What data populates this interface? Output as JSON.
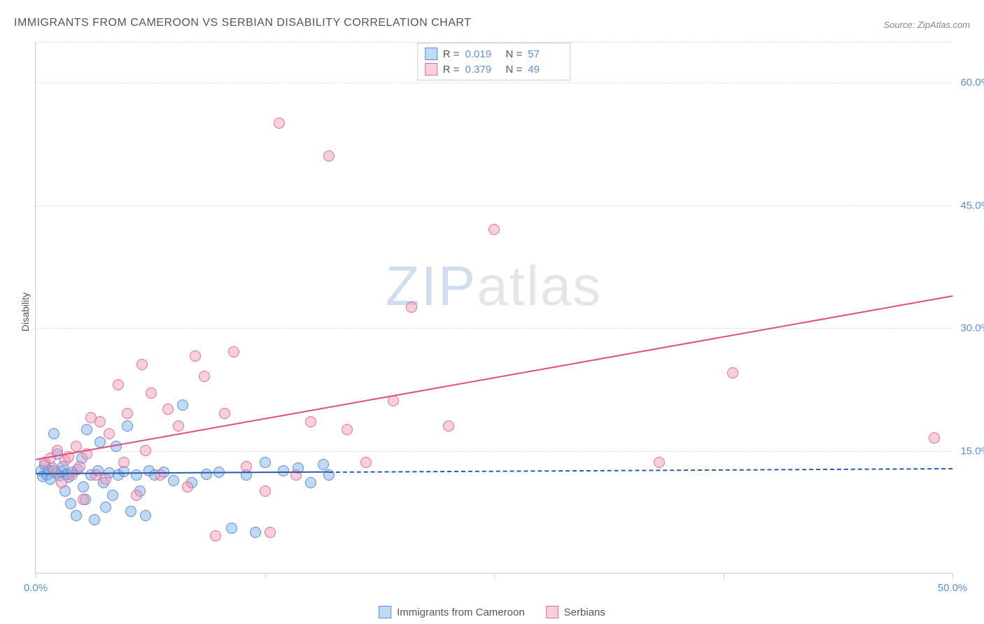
{
  "title": "IMMIGRANTS FROM CAMEROON VS SERBIAN DISABILITY CORRELATION CHART",
  "source": "Source: ZipAtlas.com",
  "ylabel": "Disability",
  "watermark": {
    "part1": "ZIP",
    "part2": "atlas"
  },
  "chart": {
    "type": "scatter",
    "xlim": [
      0,
      50
    ],
    "ylim": [
      0,
      65
    ],
    "x_tick_positions": [
      0,
      12.5,
      25,
      37.5,
      50
    ],
    "x_tick_labels": [
      "0.0%",
      "",
      "",
      "",
      "50.0%"
    ],
    "y_grid_positions": [
      15,
      30,
      45,
      60
    ],
    "y_grid_labels": [
      "15.0%",
      "30.0%",
      "45.0%",
      "60.0%"
    ],
    "background_color": "#ffffff",
    "grid_color": "#dddddd",
    "axis_color": "#cccccc",
    "tick_label_color": "#5b8fd6",
    "title_color": "#555555",
    "title_fontsize": 16,
    "label_fontsize": 14,
    "tick_fontsize": 15,
    "point_radius": 8
  },
  "series": [
    {
      "name": "Immigrants from Cameroon",
      "fill_color": "rgba(120,170,230,0.45)",
      "stroke_color": "#5b8fd6",
      "line_color": "#2a5caa",
      "swatch_fill": "rgba(120,170,230,0.45)",
      "swatch_stroke": "#5b8fd6",
      "R": "0.019",
      "N": "57",
      "regression": {
        "x1": 0,
        "y1": 12.3,
        "x2": 16,
        "y2": 12.5,
        "dash_to_x": 50
      },
      "points": [
        [
          0.3,
          12.5
        ],
        [
          0.4,
          11.8
        ],
        [
          0.5,
          13.2
        ],
        [
          0.6,
          12.0
        ],
        [
          0.7,
          12.6
        ],
        [
          0.8,
          11.5
        ],
        [
          0.9,
          12.8
        ],
        [
          1.0,
          17.0
        ],
        [
          1.1,
          12.2
        ],
        [
          1.2,
          14.5
        ],
        [
          1.3,
          11.9
        ],
        [
          1.4,
          12.4
        ],
        [
          1.5,
          13.0
        ],
        [
          1.6,
          10.0
        ],
        [
          1.7,
          12.1
        ],
        [
          1.8,
          11.7
        ],
        [
          1.9,
          8.5
        ],
        [
          2.0,
          12.3
        ],
        [
          2.2,
          7.0
        ],
        [
          2.3,
          12.7
        ],
        [
          2.5,
          14.0
        ],
        [
          2.6,
          10.5
        ],
        [
          2.7,
          9.0
        ],
        [
          2.8,
          17.5
        ],
        [
          3.0,
          12.0
        ],
        [
          3.2,
          6.5
        ],
        [
          3.4,
          12.5
        ],
        [
          3.5,
          16.0
        ],
        [
          3.7,
          11.0
        ],
        [
          3.8,
          8.0
        ],
        [
          4.0,
          12.2
        ],
        [
          4.2,
          9.5
        ],
        [
          4.4,
          15.5
        ],
        [
          4.5,
          12.0
        ],
        [
          4.8,
          12.4
        ],
        [
          5.0,
          18.0
        ],
        [
          5.2,
          7.5
        ],
        [
          5.5,
          12.0
        ],
        [
          5.7,
          10.0
        ],
        [
          6.0,
          7.0
        ],
        [
          6.2,
          12.5
        ],
        [
          6.5,
          12.0
        ],
        [
          7.0,
          12.3
        ],
        [
          7.5,
          11.3
        ],
        [
          8.0,
          20.5
        ],
        [
          8.5,
          11.0
        ],
        [
          9.3,
          12.1
        ],
        [
          10.0,
          12.3
        ],
        [
          10.7,
          5.5
        ],
        [
          11.5,
          12.0
        ],
        [
          12.0,
          5.0
        ],
        [
          12.5,
          13.5
        ],
        [
          13.5,
          12.5
        ],
        [
          14.3,
          12.8
        ],
        [
          15.0,
          11.0
        ],
        [
          15.7,
          13.3
        ],
        [
          16.0,
          12.0
        ]
      ]
    },
    {
      "name": "Serbians",
      "fill_color": "rgba(240,150,180,0.45)",
      "stroke_color": "#e66d97",
      "line_color": "#e04d7e",
      "swatch_fill": "rgba(240,150,180,0.45)",
      "swatch_stroke": "#e66d97",
      "R": "0.379",
      "N": "49",
      "regression": {
        "x1": 0,
        "y1": 14.0,
        "x2": 50,
        "y2": 34.0
      },
      "points": [
        [
          0.5,
          13.5
        ],
        [
          0.8,
          14.0
        ],
        [
          1.0,
          12.5
        ],
        [
          1.2,
          15.0
        ],
        [
          1.4,
          11.0
        ],
        [
          1.6,
          13.8
        ],
        [
          1.8,
          14.2
        ],
        [
          2.0,
          12.0
        ],
        [
          2.2,
          15.5
        ],
        [
          2.4,
          13.0
        ],
        [
          2.6,
          9.0
        ],
        [
          2.8,
          14.5
        ],
        [
          3.0,
          19.0
        ],
        [
          3.3,
          12.0
        ],
        [
          3.5,
          18.5
        ],
        [
          3.8,
          11.5
        ],
        [
          4.0,
          17.0
        ],
        [
          4.5,
          23.0
        ],
        [
          4.8,
          13.5
        ],
        [
          5.0,
          19.5
        ],
        [
          5.5,
          9.5
        ],
        [
          5.8,
          25.5
        ],
        [
          6.0,
          15.0
        ],
        [
          6.3,
          22.0
        ],
        [
          6.8,
          12.0
        ],
        [
          7.2,
          20.0
        ],
        [
          7.8,
          18.0
        ],
        [
          8.3,
          10.5
        ],
        [
          8.7,
          26.5
        ],
        [
          9.2,
          24.0
        ],
        [
          9.8,
          4.5
        ],
        [
          10.3,
          19.5
        ],
        [
          10.8,
          27.0
        ],
        [
          11.5,
          13.0
        ],
        [
          12.5,
          10.0
        ],
        [
          12.8,
          5.0
        ],
        [
          13.3,
          55.0
        ],
        [
          14.2,
          12.0
        ],
        [
          15.0,
          18.5
        ],
        [
          16.0,
          51.0
        ],
        [
          17.0,
          17.5
        ],
        [
          18.0,
          13.5
        ],
        [
          19.5,
          21.0
        ],
        [
          20.5,
          32.5
        ],
        [
          22.5,
          18.0
        ],
        [
          25.0,
          42.0
        ],
        [
          38.0,
          24.5
        ],
        [
          49.0,
          16.5
        ],
        [
          34.0,
          13.5
        ]
      ]
    }
  ],
  "stats_legend": {
    "rows": [
      {
        "series_idx": 0,
        "r_label": "R =",
        "n_label": "N ="
      },
      {
        "series_idx": 1,
        "r_label": "R =",
        "n_label": "N ="
      }
    ]
  },
  "bottom_legend": {
    "items": [
      {
        "series_idx": 0
      },
      {
        "series_idx": 1
      }
    ]
  }
}
